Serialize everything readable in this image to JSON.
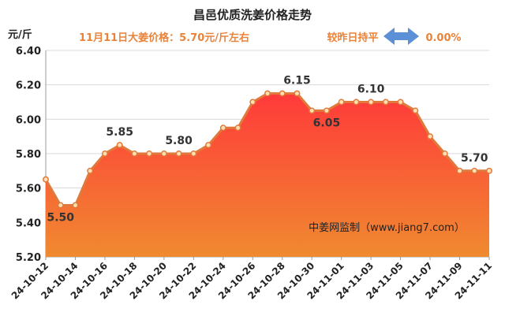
{
  "header": {
    "title": "昌邑优质洗姜价格走势",
    "price_note": "11月11日大姜价格：5.70元/斤左右",
    "compare_label": "较昨日持平",
    "change_pct": "0.00%"
  },
  "watermark": "中姜网监制（www.jiang7.com）",
  "colors": {
    "line": "#e07a3c",
    "marker_fill": "#ffe0b3",
    "area_top": "#ff3a3a",
    "area_bottom": "#f08a30",
    "arrow": "#5b8fd6",
    "accent_text": "#e8833a"
  },
  "chart_data": {
    "type": "area",
    "ylabel": "元/斤",
    "ylim": [
      5.2,
      6.4
    ],
    "yticks": [
      "5.20",
      "5.40",
      "5.60",
      "5.80",
      "6.00",
      "6.20",
      "6.40"
    ],
    "grid": "horizontal",
    "dates": [
      "24-10-12",
      "24-10-13",
      "24-10-14",
      "24-10-15",
      "24-10-16",
      "24-10-17",
      "24-10-18",
      "24-10-19",
      "24-10-20",
      "24-10-21",
      "24-10-22",
      "24-10-23",
      "24-10-24",
      "24-10-25",
      "24-10-26",
      "24-10-27",
      "24-10-28",
      "24-10-29",
      "24-10-30",
      "24-10-31",
      "24-11-01",
      "24-11-02",
      "24-11-03",
      "24-11-04",
      "24-11-05",
      "24-11-06",
      "24-11-07",
      "24-11-08",
      "24-11-09",
      "24-11-10",
      "24-11-11"
    ],
    "values": [
      5.65,
      5.5,
      5.5,
      5.7,
      5.8,
      5.85,
      5.8,
      5.8,
      5.8,
      5.8,
      5.8,
      5.85,
      5.95,
      5.95,
      6.1,
      6.15,
      6.15,
      6.15,
      6.05,
      6.05,
      6.1,
      6.1,
      6.1,
      6.1,
      6.1,
      6.05,
      5.9,
      5.8,
      5.7,
      5.7,
      5.7
    ],
    "xtick_labels": [
      "24-10-12",
      "24-10-14",
      "24-10-16",
      "24-10-18",
      "24-10-20",
      "24-10-22",
      "24-10-24",
      "24-10-26",
      "24-10-28",
      "24-10-30",
      "24-11-01",
      "24-11-03",
      "24-11-05",
      "24-11-07",
      "24-11-09",
      "24-11-11"
    ],
    "data_labels": [
      {
        "date": "24-10-13",
        "text": "5.50"
      },
      {
        "date": "24-10-17",
        "text": "5.85"
      },
      {
        "date": "24-10-21",
        "text": "5.80"
      },
      {
        "date": "24-10-29",
        "text": "6.15"
      },
      {
        "date": "24-10-31",
        "text": "6.05"
      },
      {
        "date": "24-11-03",
        "text": "6.10"
      },
      {
        "date": "24-11-10",
        "text": "5.70"
      }
    ]
  }
}
